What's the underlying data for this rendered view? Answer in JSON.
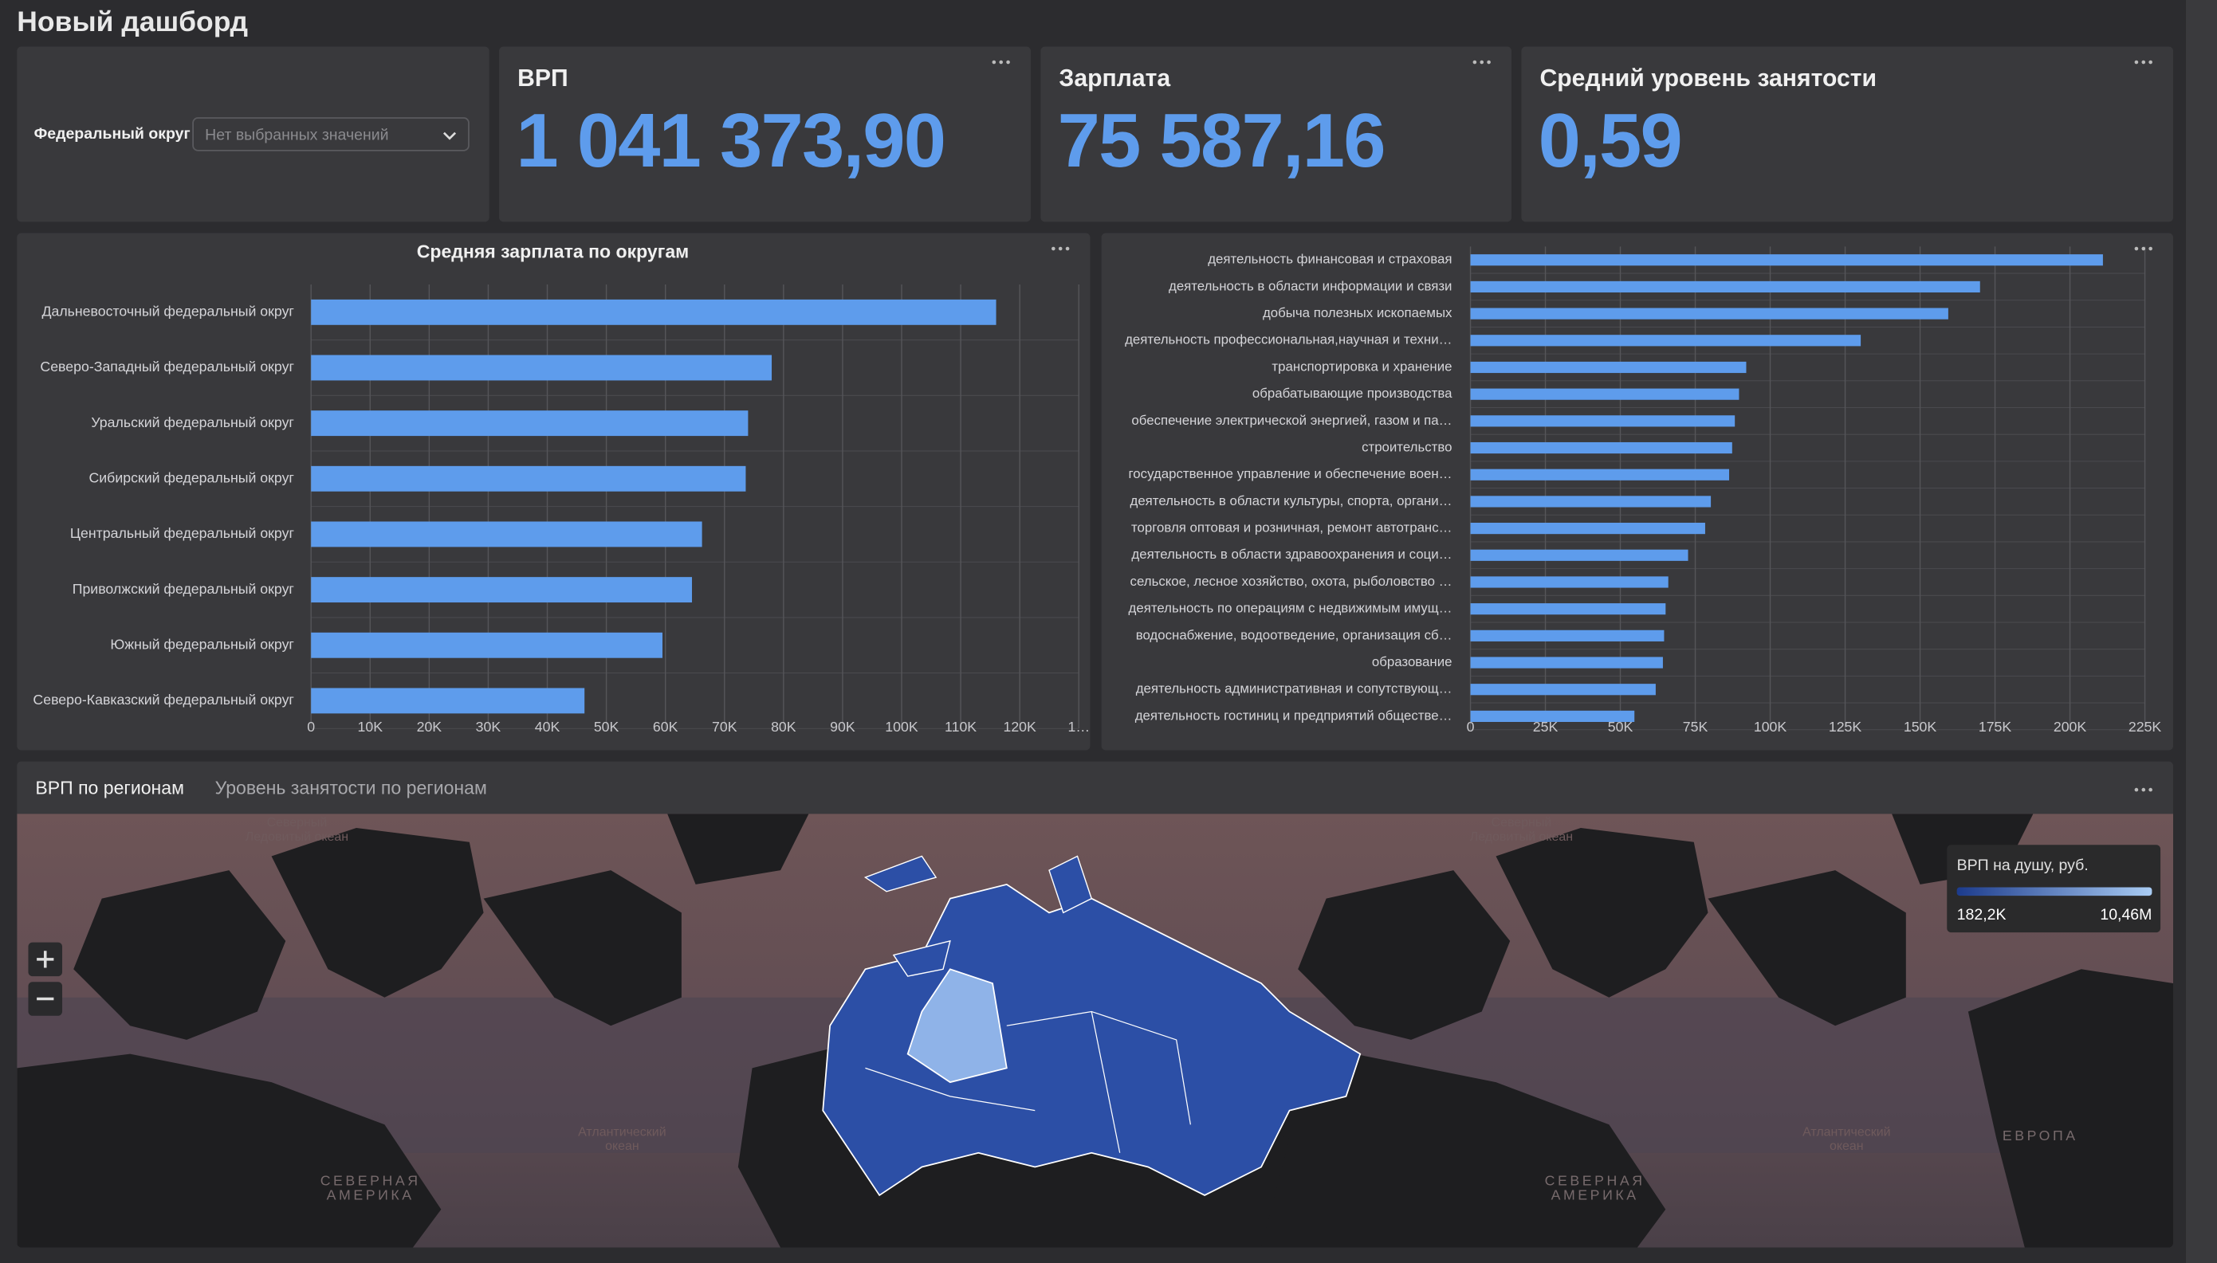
{
  "header": {
    "title": "Новый дашборд"
  },
  "filter": {
    "label": "Федеральный округ",
    "placeholder": "Нет выбранных значений"
  },
  "kpis": [
    {
      "title": "ВРП",
      "value": "1 041 373,90"
    },
    {
      "title": "Зарплата",
      "value": "75 587,16"
    },
    {
      "title": "Средний уровень занятости",
      "value": "0,59"
    }
  ],
  "chart_data": [
    {
      "type": "bar",
      "title": "Средняя зарплата по округам",
      "categories": [
        "Дальневосточный федеральный округ",
        "Северо-Западный федеральный округ",
        "Уральский федеральный округ",
        "Сибирский федеральный округ",
        "Центральный федеральный округ",
        "Приволжский федеральный округ",
        "Южный федеральный округ",
        "Северо-Кавказский федеральный округ"
      ],
      "values": [
        116000,
        78000,
        74000,
        73600,
        66200,
        64500,
        59500,
        46300
      ],
      "color": "#5e9cec",
      "xlim": [
        0,
        130000
      ],
      "xticks": [
        0,
        {
          "value": 10000,
          "label": "10K"
        },
        {
          "value": 20000,
          "label": "20K"
        },
        {
          "value": 30000,
          "label": "30K"
        },
        {
          "value": 40000,
          "label": "40K"
        },
        {
          "value": 50000,
          "label": "50K"
        },
        {
          "value": 60000,
          "label": "60K"
        },
        {
          "value": 70000,
          "label": "70K"
        },
        {
          "value": 80000,
          "label": "80K"
        },
        {
          "value": 90000,
          "label": "90K"
        },
        {
          "value": 100000,
          "label": "100K"
        },
        {
          "value": 110000,
          "label": "110K"
        },
        {
          "value": 120000,
          "label": "120K"
        },
        {
          "value": 130000,
          "label": "1…"
        }
      ],
      "grid": true
    },
    {
      "type": "bar",
      "categories": [
        "деятельность финансовая и страховая",
        "деятельность в области информации и связи",
        "добыча полезных ископаемых",
        "деятельность профессиональная,научная и техни…",
        "транспортировка и хранение",
        "обрабатывающие производства",
        "обеспечение электрической энергией, газом и па…",
        "строительство",
        "государственное управление и обеспечение воен…",
        "деятельность в области культуры, спорта, органи…",
        "торговля оптовая и розничная, ремонт автотранс…",
        "деятельность в области здравоохранения и соци…",
        "сельское, лесное хозяйство, охота, рыболовство …",
        "деятельность по операциям с недвижимым имущ…",
        "водоснабжение, водоотведение, организация сб…",
        "образование",
        "деятельность административная и сопутствующ…",
        "деятельность гостиниц и предприятий обществе…"
      ],
      "values": [
        211000,
        170000,
        159400,
        130200,
        92000,
        89600,
        88200,
        87300,
        86300,
        80200,
        78300,
        72600,
        66000,
        65100,
        64600,
        64200,
        61800,
        54700
      ],
      "color": "#5e9cec",
      "xlim": [
        0,
        225000
      ],
      "xticks": [
        0,
        {
          "value": 25000,
          "label": "25K"
        },
        {
          "value": 50000,
          "label": "50K"
        },
        {
          "value": 75000,
          "label": "75K"
        },
        {
          "value": 100000,
          "label": "100K"
        },
        {
          "value": 125000,
          "label": "125K"
        },
        {
          "value": 150000,
          "label": "150K"
        },
        {
          "value": 175000,
          "label": "175K"
        },
        {
          "value": 200000,
          "label": "200K"
        },
        {
          "value": 225000,
          "label": "225K"
        }
      ],
      "grid": true
    }
  ],
  "map": {
    "tabs": [
      "ВРП по регионам",
      "Уровень занятости по регионам"
    ],
    "legend": {
      "title": "ВРП на душу, руб.",
      "min": "182,2K",
      "max": "10,46M"
    },
    "labels": [
      "Северный Ледовитый океан",
      "Северный Ледовитый океан",
      "Атлантический океан",
      "Атлантический океан",
      "СЕВЕРНАЯ АМЕРИКА",
      "СЕВЕРНАЯ АМЕРИКА",
      "ЕВРОПА"
    ]
  }
}
